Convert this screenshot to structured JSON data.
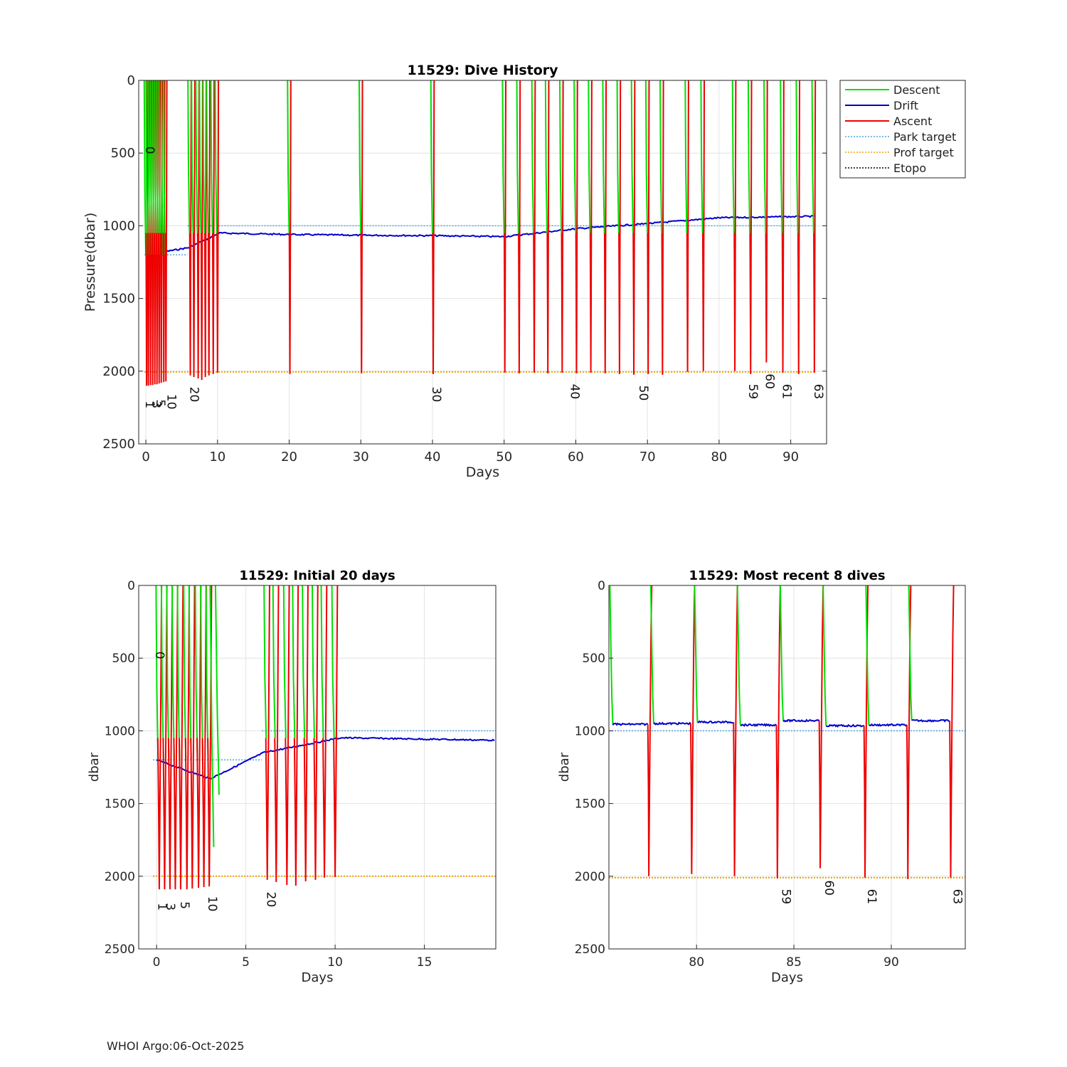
{
  "colors": {
    "descent": "#00e000",
    "drift": "#0000cc",
    "ascent": "#ee0000",
    "park_target": "#4aa3df",
    "prof_target": "#f0a000",
    "etopo": "#000000",
    "grid": "#e3e3e3",
    "axis": "#262626"
  },
  "legend": {
    "descent": "Descent",
    "drift": "Drift",
    "ascent": "Ascent",
    "park_target": "Park target",
    "prof_target": "Prof target",
    "etopo": "Etopo"
  },
  "footer": "WHOI Argo:06-Oct-2025",
  "chart_data": [
    {
      "id": "main",
      "type": "line",
      "title": "11529: Dive History",
      "xlabel": "Days",
      "ylabel": "Pressure(dbar)",
      "xlim": [
        -1,
        95
      ],
      "ylim": [
        0,
        2500
      ],
      "y_reversed": true,
      "xticks": [
        0,
        10,
        20,
        30,
        40,
        50,
        60,
        70,
        80,
        90
      ],
      "yticks": [
        0,
        500,
        1000,
        1500,
        2000,
        2500
      ],
      "grid": true,
      "legend_position": "outside top-right",
      "park_target": [
        {
          "x": [
            -0.2,
            5.8
          ],
          "y": 1200
        },
        {
          "x": [
            5.8,
            93.5
          ],
          "y": 1000
        }
      ],
      "prof_target": {
        "x": [
          -0.2,
          93.5
        ],
        "y": 2005
      },
      "drift": {
        "x": [
          0,
          6,
          10.3,
          20,
          30,
          40,
          50,
          60,
          70,
          80,
          93.5
        ],
        "y": [
          1200,
          1150,
          1050,
          1060,
          1065,
          1068,
          1075,
          1020,
          985,
          945,
          935
        ]
      },
      "profiles": [
        {
          "x": 0.1,
          "max": 2100
        },
        {
          "x": 0.35,
          "max": 2100
        },
        {
          "x": 0.65,
          "max": 2095
        },
        {
          "x": 0.95,
          "max": 2095
        },
        {
          "x": 1.25,
          "max": 2090
        },
        {
          "x": 1.55,
          "max": 2090
        },
        {
          "x": 1.85,
          "max": 2085
        },
        {
          "x": 2.15,
          "max": 2080
        },
        {
          "x": 2.5,
          "max": 2075
        },
        {
          "x": 2.8,
          "max": 2070
        },
        {
          "x": 6.2,
          "max": 2030
        },
        {
          "x": 6.7,
          "max": 2040
        },
        {
          "x": 7.3,
          "max": 2050
        },
        {
          "x": 7.8,
          "max": 2060
        },
        {
          "x": 8.3,
          "max": 2040
        },
        {
          "x": 8.8,
          "max": 2030
        },
        {
          "x": 9.4,
          "max": 2020
        },
        {
          "x": 10.0,
          "max": 2010
        },
        {
          "x": 20.1,
          "max": 2020
        },
        {
          "x": 30.1,
          "max": 2015
        },
        {
          "x": 40.1,
          "max": 2020
        },
        {
          "x": 50.1,
          "max": 2010
        },
        {
          "x": 52.1,
          "max": 2015
        },
        {
          "x": 54.2,
          "max": 2010
        },
        {
          "x": 56.1,
          "max": 2015
        },
        {
          "x": 58.1,
          "max": 2010
        },
        {
          "x": 60.1,
          "max": 2015
        },
        {
          "x": 62.1,
          "max": 2010
        },
        {
          "x": 64.1,
          "max": 2015
        },
        {
          "x": 66.1,
          "max": 2020
        },
        {
          "x": 68.1,
          "max": 2025
        },
        {
          "x": 70.1,
          "max": 2020
        },
        {
          "x": 72.1,
          "max": 2025
        },
        {
          "x": 75.6,
          "max": 2005
        },
        {
          "x": 77.8,
          "max": 2000
        },
        {
          "x": 82.2,
          "max": 2000
        },
        {
          "x": 84.4,
          "max": 2020
        },
        {
          "x": 86.6,
          "max": 1940
        },
        {
          "x": 88.9,
          "max": 2010
        },
        {
          "x": 91.1,
          "max": 2020
        },
        {
          "x": 93.3,
          "max": 2010
        }
      ],
      "cycle_labels": [
        {
          "x": 0,
          "y": 2230,
          "label": "1"
        },
        {
          "x": 0.9,
          "y": 2230,
          "label": "3"
        },
        {
          "x": 1.5,
          "y": 2220,
          "label": "5"
        },
        {
          "x": 3.0,
          "y": 2210,
          "label": "10"
        },
        {
          "x": 6.2,
          "y": 2160,
          "label": "20"
        },
        {
          "x": 40.0,
          "y": 2160,
          "label": "30"
        },
        {
          "x": 59.3,
          "y": 2140,
          "label": "40"
        },
        {
          "x": 68.9,
          "y": 2150,
          "label": "50"
        },
        {
          "x": 84.2,
          "y": 2140,
          "label": "59"
        },
        {
          "x": 86.5,
          "y": 2070,
          "label": "60"
        },
        {
          "x": 88.9,
          "y": 2140,
          "label": "61"
        },
        {
          "x": 93.3,
          "y": 2140,
          "label": "63"
        },
        {
          "x": 0,
          "y": 480,
          "label": "0"
        }
      ]
    },
    {
      "id": "initial",
      "type": "line",
      "title": "11529: Initial 20 days",
      "xlabel": "Days",
      "ylabel": "dbar",
      "xlim": [
        -1,
        19
      ],
      "ylim": [
        0,
        2500
      ],
      "y_reversed": true,
      "xticks": [
        0,
        5,
        10,
        15
      ],
      "yticks": [
        0,
        500,
        1000,
        1500,
        2000,
        2500
      ],
      "grid": true,
      "park_target": [
        {
          "x": [
            -0.2,
            5.9
          ],
          "y": 1200
        },
        {
          "x": [
            5.9,
            19
          ],
          "y": 1000
        }
      ],
      "prof_target": {
        "x": [
          -0.2,
          19
        ],
        "y": 2000
      },
      "drift": {
        "x": [
          0,
          3,
          6,
          10.3,
          14,
          19
        ],
        "y": [
          1200,
          1330,
          1150,
          1048,
          1055,
          1065
        ]
      },
      "profiles": [
        {
          "x": 0.15,
          "max": 2090
        },
        {
          "x": 0.45,
          "max": 2090
        },
        {
          "x": 0.75,
          "max": 2090
        },
        {
          "x": 1.05,
          "max": 2090
        },
        {
          "x": 1.35,
          "max": 2090
        },
        {
          "x": 1.7,
          "max": 2090
        },
        {
          "x": 2.0,
          "max": 2085
        },
        {
          "x": 2.35,
          "max": 2080
        },
        {
          "x": 2.65,
          "max": 2075
        },
        {
          "x": 2.95,
          "max": 2070
        },
        {
          "x": 6.2,
          "max": 2025
        },
        {
          "x": 6.7,
          "max": 2040
        },
        {
          "x": 7.3,
          "max": 2060
        },
        {
          "x": 7.8,
          "max": 2065
        },
        {
          "x": 8.35,
          "max": 2035
        },
        {
          "x": 8.9,
          "max": 2025
        },
        {
          "x": 9.4,
          "max": 2010
        },
        {
          "x": 10.0,
          "max": 2005
        }
      ],
      "descents_only": [
        {
          "x": 3.2,
          "max": 1800
        },
        {
          "x": 3.5,
          "max": 1440
        }
      ],
      "cycle_labels": [
        {
          "x": 0.1,
          "y": 2210,
          "label": "1"
        },
        {
          "x": 0.55,
          "y": 2210,
          "label": "3"
        },
        {
          "x": 1.35,
          "y": 2200,
          "label": "5"
        },
        {
          "x": 2.9,
          "y": 2190,
          "label": "10"
        },
        {
          "x": 6.2,
          "y": 2160,
          "label": "20"
        },
        {
          "x": -0.05,
          "y": 480,
          "label": "0"
        }
      ]
    },
    {
      "id": "recent",
      "type": "line",
      "title": "11529: Most recent 8 dives",
      "xlabel": "Days",
      "ylabel": "dbar",
      "xlim": [
        75.5,
        93.8
      ],
      "ylim": [
        0,
        2500
      ],
      "y_reversed": true,
      "xticks": [
        80,
        85,
        90
      ],
      "yticks": [
        0,
        500,
        1000,
        1500,
        2000,
        2500
      ],
      "grid": true,
      "park_target": [
        {
          "x": [
            75.5,
            93.8
          ],
          "y": 1000
        }
      ],
      "prof_target": {
        "x": [
          75.5,
          93.8
        ],
        "y": 2010
      },
      "dives": [
        {
          "start": 75.55,
          "drift": 955,
          "asc": 77.5,
          "max": 2000
        },
        {
          "start": 77.65,
          "drift": 950,
          "asc": 79.7,
          "max": 1985
        },
        {
          "start": 79.9,
          "drift": 940,
          "asc": 81.9,
          "max": 2000
        },
        {
          "start": 82.1,
          "drift": 960,
          "asc": 84.1,
          "max": 2015
        },
        {
          "start": 84.3,
          "drift": 930,
          "asc": 86.3,
          "max": 1945
        },
        {
          "start": 86.5,
          "drift": 965,
          "asc": 88.6,
          "max": 2010
        },
        {
          "start": 88.7,
          "drift": 960,
          "asc": 90.8,
          "max": 2020
        },
        {
          "start": 90.9,
          "drift": 930,
          "asc": 93.0,
          "max": 2010
        }
      ],
      "cycle_labels": [
        {
          "x": 84.4,
          "y": 2140,
          "label": "59"
        },
        {
          "x": 86.6,
          "y": 2080,
          "label": "60"
        },
        {
          "x": 88.8,
          "y": 2140,
          "label": "61"
        },
        {
          "x": 93.2,
          "y": 2140,
          "label": "63"
        }
      ]
    }
  ]
}
